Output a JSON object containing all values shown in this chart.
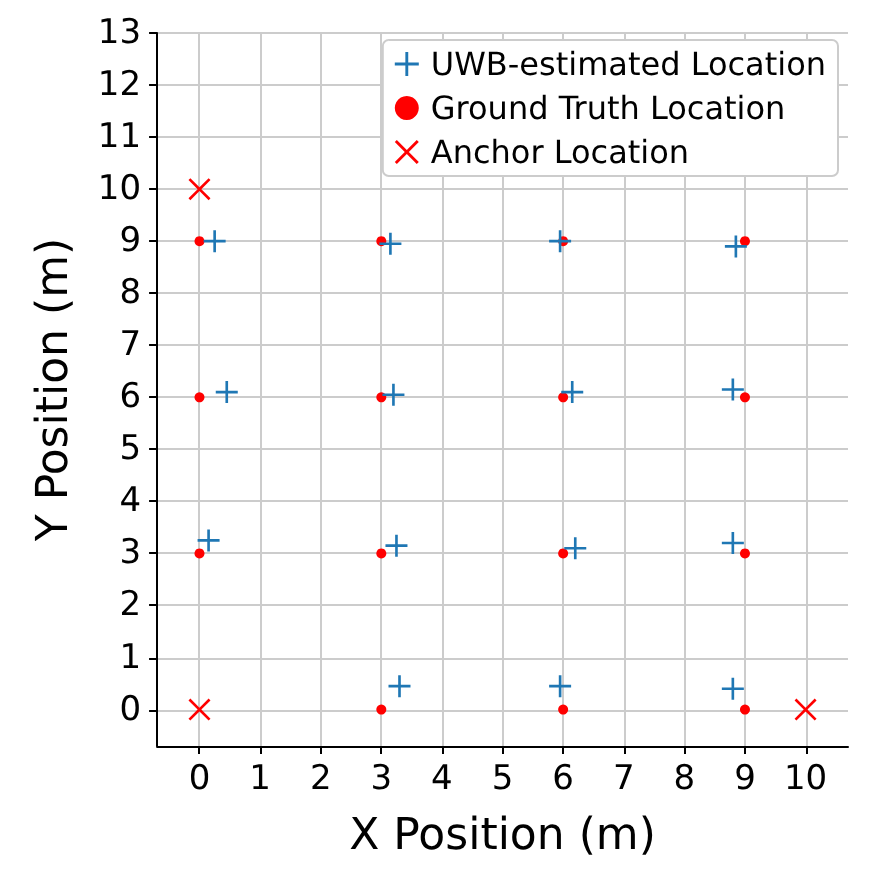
{
  "chart_data": {
    "type": "scatter",
    "xlabel": "X Position (m)",
    "ylabel": "Y Position (m)",
    "xlim": [
      -0.7,
      10.7
    ],
    "ylim": [
      -0.7,
      13
    ],
    "xticks": [
      0,
      1,
      2,
      3,
      4,
      5,
      6,
      7,
      8,
      9,
      10
    ],
    "yticks": [
      0,
      1,
      2,
      3,
      4,
      5,
      6,
      7,
      8,
      9,
      10,
      11,
      12,
      13
    ],
    "grid": true,
    "legend": "top right",
    "series": [
      {
        "name": "UWB-estimated Location",
        "color": "#1f77b4",
        "marker": "plus",
        "x": [
          0.25,
          3.15,
          5.95,
          8.85,
          0.45,
          3.2,
          6.15,
          8.8,
          0.15,
          3.25,
          6.2,
          8.8,
          3.3,
          5.95,
          8.8
        ],
        "values": [
          9.0,
          8.95,
          9.0,
          8.9,
          6.1,
          6.05,
          6.1,
          6.15,
          3.25,
          3.15,
          3.1,
          3.2,
          0.45,
          0.45,
          0.4
        ]
      },
      {
        "name": "Ground Truth Location",
        "color": "#ff0000",
        "marker": "circle",
        "x": [
          0,
          3,
          6,
          9,
          0,
          3,
          6,
          9,
          0,
          3,
          6,
          9,
          3,
          6,
          9
        ],
        "values": [
          9,
          9,
          9,
          9,
          6,
          6,
          6,
          6,
          3,
          3,
          3,
          3,
          0,
          0,
          0
        ]
      },
      {
        "name": "Anchor Location",
        "color": "#ff0000",
        "marker": "cross",
        "x": [
          0,
          0,
          10
        ],
        "values": [
          10,
          0,
          0
        ]
      }
    ]
  }
}
